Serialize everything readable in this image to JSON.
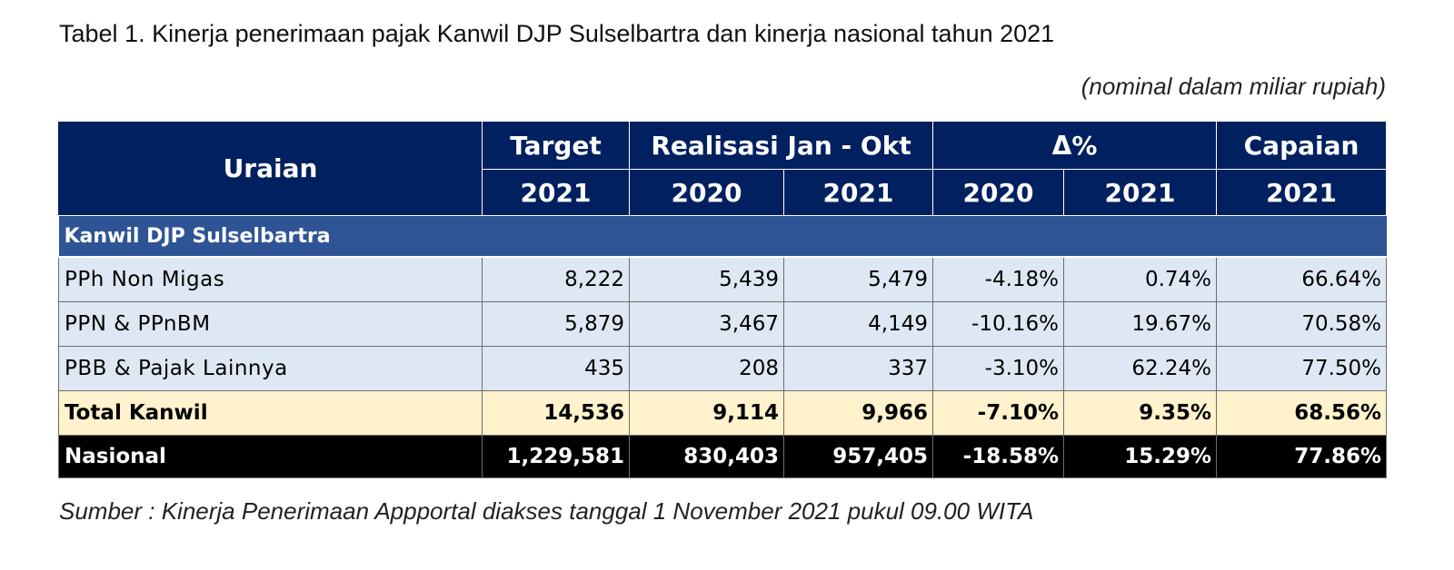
{
  "title": "Tabel 1. Kinerja penerimaan pajak Kanwil DJP Sulselbartra dan kinerja nasional tahun 2021",
  "unit_note": "(nominal dalam miliar rupiah)",
  "header": {
    "uraian": "Uraian",
    "target": "Target",
    "target_year": "2021",
    "realisasi": "Realisasi Jan - Okt",
    "realisasi_2020": "2020",
    "realisasi_2021": "2021",
    "delta": "Δ%",
    "delta_2020": "2020",
    "delta_2021": "2021",
    "capaian": "Capaian",
    "capaian_year": "2021"
  },
  "section_label": "Kanwil DJP Sulselbartra",
  "rows": [
    {
      "label": "PPh Non Migas",
      "target": "8,222",
      "real_2020": "5,439",
      "real_2021": "5,479",
      "delta_2020": "-4.18%",
      "delta_2021": "0.74%",
      "capaian": "66.64%"
    },
    {
      "label": "PPN & PPnBM",
      "target": "5,879",
      "real_2020": "3,467",
      "real_2021": "4,149",
      "delta_2020": "-10.16%",
      "delta_2021": "19.67%",
      "capaian": "70.58%"
    },
    {
      "label": "PBB & Pajak Lainnya",
      "target": "435",
      "real_2020": "208",
      "real_2021": "337",
      "delta_2020": "-3.10%",
      "delta_2021": "62.24%",
      "capaian": "77.50%"
    }
  ],
  "total": {
    "label": "Total Kanwil",
    "target": "14,536",
    "real_2020": "9,114",
    "real_2021": "9,966",
    "delta_2020": "-7.10%",
    "delta_2021": "9.35%",
    "capaian": "68.56%"
  },
  "nasional": {
    "label": "Nasional",
    "target": "1,229,581",
    "real_2020": "830,403",
    "real_2021": "957,405",
    "delta_2020": "-18.58%",
    "delta_2021": "15.29%",
    "capaian": "77.86%"
  },
  "source": "Sumber : Kinerja Penerimaan Appportal diakses tanggal  1 November 2021 pukul 09.00 WITA",
  "colors": {
    "header_bg": "#002060",
    "section_bg": "#2f5496",
    "row_bg": "#dde8f4",
    "total_bg": "#fff2cc",
    "nasional_bg": "#000000"
  }
}
